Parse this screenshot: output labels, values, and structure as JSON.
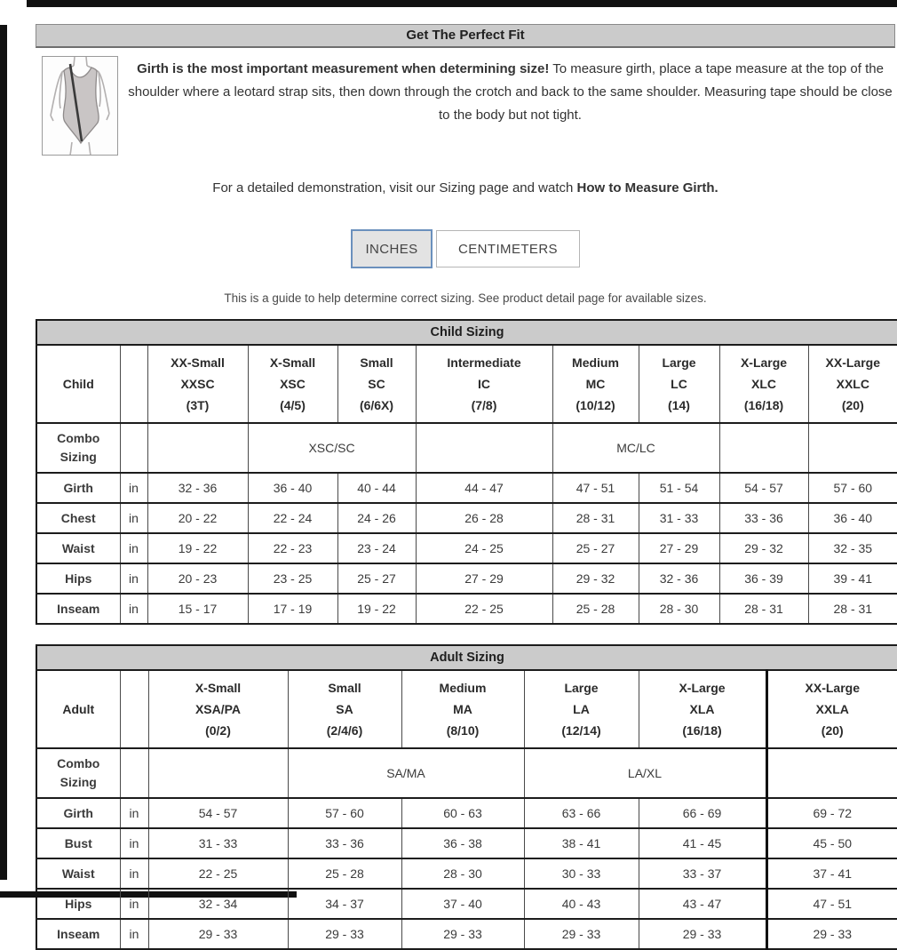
{
  "header": {
    "title": "Get The Perfect Fit"
  },
  "intro": {
    "bold": "Girth is the most important measurement when determining size!",
    "text": " To measure girth, place a tape measure at the top of the shoulder where a leotard strap sits, then down through the crotch and back to the same shoulder. Measuring tape should be close to the body but not tight.",
    "demo_prefix": "For a detailed demonstration, visit our Sizing page and watch ",
    "demo_bold": "How to Measure Girth.",
    "illustration_icon": "leotard-girth-measurement-diagram"
  },
  "unit_toggle": {
    "inches_label": "INCHES",
    "centimeters_label": "CENTIMETERS",
    "selected": "INCHES",
    "active_border_color": "#6b90bd"
  },
  "note": "This is a guide to help determine correct sizing. See product detail page for available sizes.",
  "tables": {
    "child": {
      "title": "Child Sizing",
      "group_label": "Child",
      "combo_label_line1": "Combo",
      "combo_label_line2": "Sizing",
      "unit": "in",
      "columns": [
        {
          "name": "XX-Small",
          "code": "XXSC",
          "range": "(3T)"
        },
        {
          "name": "X-Small",
          "code": "XSC",
          "range": "(4/5)"
        },
        {
          "name": "Small",
          "code": "SC",
          "range": "(6/6X)"
        },
        {
          "name": "Intermediate",
          "code": "IC",
          "range": "(7/8)"
        },
        {
          "name": "Medium",
          "code": "MC",
          "range": "(10/12)"
        },
        {
          "name": "Large",
          "code": "LC",
          "range": "(14)"
        },
        {
          "name": "X-Large",
          "code": "XLC",
          "range": "(16/18)"
        },
        {
          "name": "XX-Large",
          "code": "XXLC",
          "range": "(20)"
        }
      ],
      "combo_cells": [
        {
          "span": 1,
          "label": ""
        },
        {
          "span": 2,
          "label": "XSC/SC"
        },
        {
          "span": 1,
          "label": ""
        },
        {
          "span": 2,
          "label": "MC/LC"
        },
        {
          "span": 1,
          "label": ""
        },
        {
          "span": 1,
          "label": ""
        }
      ],
      "rows": [
        {
          "label": "Girth",
          "values": [
            "32 - 36",
            "36 - 40",
            "40 - 44",
            "44 - 47",
            "47 - 51",
            "51 - 54",
            "54 - 57",
            "57 - 60"
          ]
        },
        {
          "label": "Chest",
          "values": [
            "20 - 22",
            "22 - 24",
            "24 - 26",
            "26 - 28",
            "28 - 31",
            "31 - 33",
            "33 - 36",
            "36 - 40"
          ]
        },
        {
          "label": "Waist",
          "values": [
            "19 - 22",
            "22 - 23",
            "23 - 24",
            "24 - 25",
            "25 - 27",
            "27 - 29",
            "29 - 32",
            "32 - 35"
          ]
        },
        {
          "label": "Hips",
          "values": [
            "20 - 23",
            "23 - 25",
            "25 - 27",
            "27 - 29",
            "29 - 32",
            "32 - 36",
            "36 - 39",
            "39 - 41"
          ]
        },
        {
          "label": "Inseam",
          "values": [
            "15 - 17",
            "17 - 19",
            "19 - 22",
            "22 - 25",
            "25 - 28",
            "28 - 30",
            "28 - 31",
            "28 - 31"
          ]
        }
      ]
    },
    "adult": {
      "title": "Adult Sizing",
      "group_label": "Adult",
      "combo_label_line1": "Combo",
      "combo_label_line2": "Sizing",
      "unit": "in",
      "columns": [
        {
          "name": "X-Small",
          "code": "XSA/PA",
          "range": "(0/2)"
        },
        {
          "name": "Small",
          "code": "SA",
          "range": "(2/4/6)"
        },
        {
          "name": "Medium",
          "code": "MA",
          "range": "(8/10)"
        },
        {
          "name": "Large",
          "code": "LA",
          "range": "(12/14)"
        },
        {
          "name": "X-Large",
          "code": "XLA",
          "range": "(16/18)"
        },
        {
          "name": "XX-Large",
          "code": "XXLA",
          "range": "(20)"
        }
      ],
      "combo_cells": [
        {
          "span": 1,
          "label": ""
        },
        {
          "span": 2,
          "label": "SA/MA"
        },
        {
          "span": 2,
          "label": "LA/XL"
        },
        {
          "span": 1,
          "label": ""
        }
      ],
      "rows": [
        {
          "label": "Girth",
          "values": [
            "54 - 57",
            "57 - 60",
            "60 - 63",
            "63 - 66",
            "66 - 69",
            "69 - 72"
          ]
        },
        {
          "label": "Bust",
          "values": [
            "31 - 33",
            "33 - 36",
            "36 - 38",
            "38 - 41",
            "41 - 45",
            "45 - 50"
          ]
        },
        {
          "label": "Waist",
          "values": [
            "22 - 25",
            "25 - 28",
            "28 - 30",
            "30 - 33",
            "33 - 37",
            "37 - 41"
          ]
        },
        {
          "label": "Hips",
          "values": [
            "32 - 34",
            "34 - 37",
            "37 - 40",
            "40 - 43",
            "43 - 47",
            "47 - 51"
          ]
        },
        {
          "label": "Inseam",
          "values": [
            "29 - 33",
            "29 - 33",
            "29 - 33",
            "29 - 33",
            "29 - 33",
            "29 - 33"
          ]
        }
      ]
    }
  }
}
